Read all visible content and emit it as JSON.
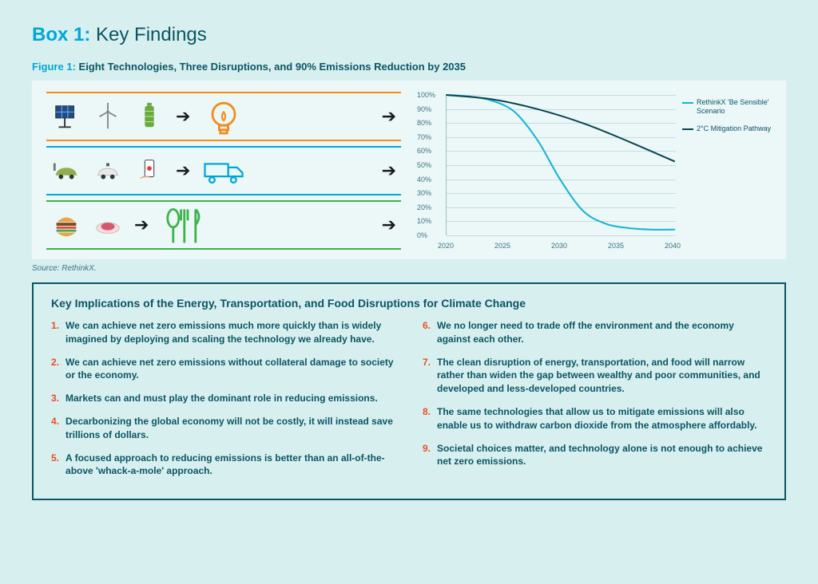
{
  "box_title": {
    "prefix": "Box 1:",
    "rest": " Key Findings",
    "accent_color": "#00a7d6",
    "text_color": "#0a5663"
  },
  "figure_title": {
    "prefix": "Figure 1:",
    "rest": " Eight Technologies, Three Disruptions, and 90% Emissions Reduction by 2035"
  },
  "flows": [
    {
      "border_color": "#f28c1e",
      "icons": [
        "solar-panel-icon",
        "wind-turbine-icon",
        "battery-icon"
      ],
      "result_icon": "lightbulb-icon",
      "result_color": "#f28c1e"
    },
    {
      "border_color": "#00a7d6",
      "icons": [
        "ev-car-icon",
        "autonomous-car-icon",
        "phone-app-icon"
      ],
      "result_icon": "truck-icon",
      "result_color": "#00a7d6"
    },
    {
      "border_color": "#3bb44a",
      "icons": [
        "burger-icon",
        "lab-meat-icon"
      ],
      "result_icon": "utensils-icon",
      "result_color": "#3bb44a"
    }
  ],
  "chart": {
    "type": "line",
    "background_color": "#ecf7f8",
    "grid_color": "#c4dde0",
    "axis_color": "#99bfc5",
    "xlim": [
      2020,
      2040
    ],
    "xticks": [
      2020,
      2025,
      2030,
      2035,
      2040
    ],
    "ylim": [
      0,
      100
    ],
    "ytick_step": 10,
    "ylabel_suffix": "%",
    "series": [
      {
        "name": "RethinkX 'Be Sensible' Scenario",
        "color": "#12b3d6",
        "width": 2,
        "points": [
          [
            2020,
            100
          ],
          [
            2022,
            99
          ],
          [
            2024,
            96
          ],
          [
            2026,
            88
          ],
          [
            2028,
            68
          ],
          [
            2030,
            40
          ],
          [
            2032,
            18
          ],
          [
            2034,
            9
          ],
          [
            2036,
            6
          ],
          [
            2038,
            5
          ],
          [
            2040,
            5
          ]
        ]
      },
      {
        "name": "2°C Mitigation Pathway",
        "color": "#0a4550",
        "width": 2,
        "points": [
          [
            2020,
            100
          ],
          [
            2024,
            97
          ],
          [
            2028,
            90
          ],
          [
            2032,
            80
          ],
          [
            2036,
            67
          ],
          [
            2040,
            53
          ]
        ]
      }
    ],
    "label_fontsize": 9
  },
  "source": "Source: RethinkX.",
  "implications": {
    "heading": "Key Implications of the Energy, Transportation, and Food Disruptions for Climate Change",
    "number_color": "#e94f26",
    "items": [
      "We can achieve net zero emissions much more quickly than is widely imagined by deploying and scaling the technology we already have.",
      "We can achieve net zero emissions without collateral damage to society or the economy.",
      "Markets can and must play the dominant role in reducing emissions.",
      "Decarbonizing the global economy will not be costly, it will instead save trillions of dollars.",
      "A focused approach to reducing emissions is better than an all-of-the-above 'whack-a-mole' approach.",
      "We no longer need to trade off the environment and the economy against each other.",
      "The clean disruption of energy, transportation, and food will narrow rather than widen the gap between wealthy and poor communities, and developed and less-developed countries.",
      "The same technologies that allow us to mitigate emissions will also enable us to withdraw carbon dioxide from the atmosphere affordably.",
      "Societal choices matter, and technology alone is not enough to achieve net zero emissions."
    ]
  }
}
